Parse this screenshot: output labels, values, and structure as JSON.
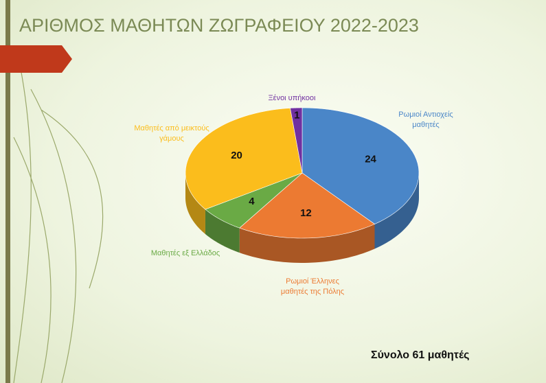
{
  "chart_data": {
    "type": "pie",
    "title": "ΑΡΙΘΜΟΣ ΜΑΘΗΤΩΝ ΖΩΓΡΑΦΕΙΟΥ 2022-2023",
    "categories": [
      "Ρωμιοί Αντιοχείς μαθητές",
      "Ρωμιοί Έλληνες μαθητές της Πόλης",
      "Μαθητές εξ Ελλάδος",
      "Μαθητές από μεικτούς γάμους",
      "Ξένοι υπήκοοι"
    ],
    "values": [
      24,
      12,
      4,
      20,
      1
    ],
    "colors": [
      "#4a86c8",
      "#ec7a32",
      "#6aaa45",
      "#fbbd1c",
      "#7030a0"
    ],
    "note": "Σύνολο 61 μαθητές"
  }
}
